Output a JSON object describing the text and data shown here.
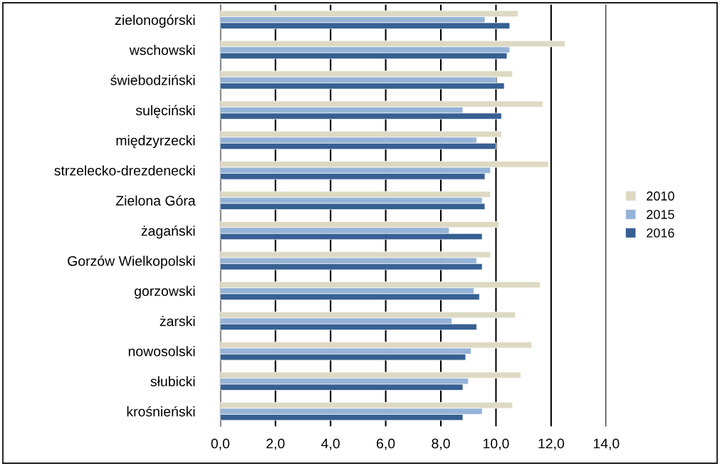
{
  "chart_data": {
    "type": "bar",
    "orientation": "horizontal",
    "categories": [
      "zielonogórski",
      "wschowski",
      "świebodziński",
      "sulęciński",
      "międzyrzecki",
      "strzelecko-drezdenecki",
      "Zielona Góra",
      "żagański",
      "Gorzów Wielkopolski",
      "gorzowski",
      "żarski",
      "nowosolski",
      "słubicki",
      "krośnieński"
    ],
    "series": [
      {
        "name": "2010",
        "color": "#ddd9c3",
        "values": [
          10.8,
          12.5,
          10.6,
          11.7,
          10.2,
          11.9,
          9.8,
          10.1,
          9.8,
          11.6,
          10.7,
          11.3,
          10.9,
          10.6
        ]
      },
      {
        "name": "2015",
        "color": "#95b3d7",
        "values": [
          9.6,
          10.5,
          10.0,
          8.8,
          9.3,
          9.8,
          9.5,
          8.3,
          9.3,
          9.2,
          8.4,
          9.1,
          9.0,
          9.5
        ]
      },
      {
        "name": "2016",
        "color": "#376092",
        "values": [
          10.5,
          10.4,
          10.3,
          10.2,
          10.0,
          9.6,
          9.6,
          9.5,
          9.5,
          9.4,
          9.3,
          8.9,
          8.8,
          8.8
        ]
      }
    ],
    "xlim": [
      0,
      14
    ],
    "xticks": [
      {
        "value": 0,
        "label": "0,0"
      },
      {
        "value": 2,
        "label": "2,0"
      },
      {
        "value": 4,
        "label": "4,0"
      },
      {
        "value": 6,
        "label": "6,0"
      },
      {
        "value": 8,
        "label": "8,0"
      },
      {
        "value": 10,
        "label": "10,0"
      },
      {
        "value": 12,
        "label": "12,0"
      },
      {
        "value": 14,
        "label": "14,0"
      }
    ],
    "grid": "x",
    "legend": "right"
  }
}
